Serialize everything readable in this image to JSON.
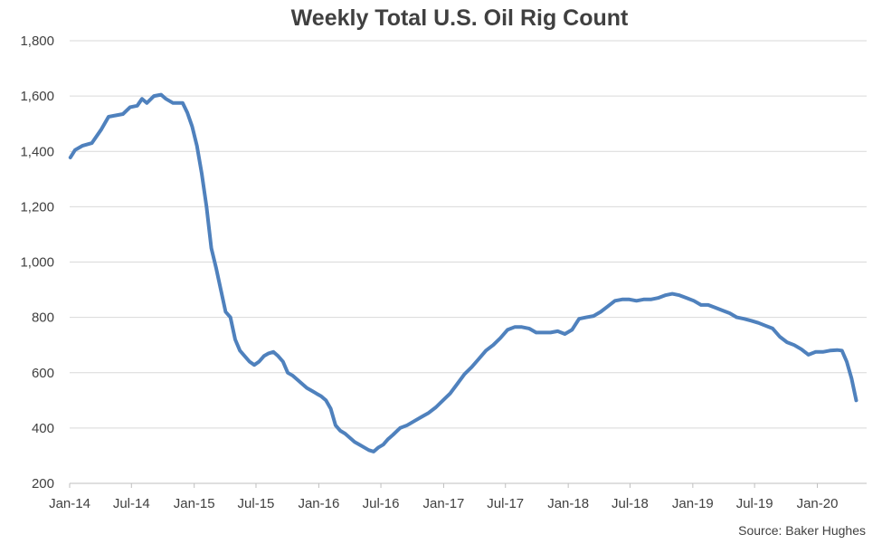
{
  "chart_data": {
    "type": "line",
    "title": "Weekly Total U.S. Oil Rig Count",
    "source": "Source: Baker Hughes",
    "x_tick_labels": [
      "Jan-14",
      "Jul-14",
      "Jan-15",
      "Jul-15",
      "Jan-16",
      "Jul-16",
      "Jan-17",
      "Jul-17",
      "Jan-18",
      "Jul-18",
      "Jan-19",
      "Jul-19",
      "Jan-20"
    ],
    "y_tick_labels": [
      "200",
      "400",
      "600",
      "800",
      "1,000",
      "1,200",
      "1,400",
      "1,600",
      "1,800"
    ],
    "ylim": [
      200,
      1800
    ],
    "xlim": [
      "2014-01-01",
      "2020-05-01"
    ],
    "grid": "horizontal",
    "colors": {
      "line": "#4f81bd",
      "grid": "#d9d9d9",
      "text": "#404040"
    },
    "series": [
      {
        "x": [
          "2014-01-03",
          "2014-01-17",
          "2014-02-07",
          "2014-03-07",
          "2014-04-04",
          "2014-04-25",
          "2014-05-16",
          "2014-06-06",
          "2014-06-27",
          "2014-07-18",
          "2014-08-01",
          "2014-08-15",
          "2014-09-05",
          "2014-09-26",
          "2014-10-10",
          "2014-10-31",
          "2014-11-28",
          "2014-12-12",
          "2014-12-26",
          "2015-01-09",
          "2015-01-23",
          "2015-02-06",
          "2015-02-20",
          "2015-03-06",
          "2015-03-20",
          "2015-04-03",
          "2015-04-17",
          "2015-05-01",
          "2015-05-15",
          "2015-05-29",
          "2015-06-12",
          "2015-06-26",
          "2015-07-10",
          "2015-07-24",
          "2015-08-07",
          "2015-08-21",
          "2015-09-04",
          "2015-09-18",
          "2015-10-02",
          "2015-10-16",
          "2015-10-30",
          "2015-11-13",
          "2015-11-27",
          "2015-12-11",
          "2015-12-25",
          "2016-01-08",
          "2016-01-22",
          "2016-02-05",
          "2016-02-19",
          "2016-03-04",
          "2016-03-18",
          "2016-04-01",
          "2016-04-15",
          "2016-04-29",
          "2016-05-13",
          "2016-05-27",
          "2016-06-10",
          "2016-06-24",
          "2016-07-08",
          "2016-07-22",
          "2016-08-05",
          "2016-08-26",
          "2016-09-16",
          "2016-10-07",
          "2016-10-28",
          "2016-11-18",
          "2016-12-09",
          "2016-12-30",
          "2017-01-20",
          "2017-02-10",
          "2017-03-03",
          "2017-03-24",
          "2017-04-14",
          "2017-05-05",
          "2017-05-26",
          "2017-06-16",
          "2017-07-07",
          "2017-07-28",
          "2017-08-18",
          "2017-09-08",
          "2017-09-29",
          "2017-10-20",
          "2017-11-10",
          "2017-12-01",
          "2017-12-22",
          "2018-01-12",
          "2018-02-02",
          "2018-02-23",
          "2018-03-16",
          "2018-04-06",
          "2018-04-27",
          "2018-05-18",
          "2018-06-08",
          "2018-06-29",
          "2018-07-20",
          "2018-08-10",
          "2018-08-31",
          "2018-09-21",
          "2018-10-12",
          "2018-11-02",
          "2018-11-23",
          "2018-12-14",
          "2019-01-04",
          "2019-01-25",
          "2019-02-15",
          "2019-03-08",
          "2019-03-29",
          "2019-04-19",
          "2019-05-10",
          "2019-05-31",
          "2019-06-21",
          "2019-07-12",
          "2019-08-02",
          "2019-08-23",
          "2019-09-13",
          "2019-10-04",
          "2019-10-25",
          "2019-11-15",
          "2019-12-06",
          "2019-12-27",
          "2020-01-17",
          "2020-02-07",
          "2020-02-28",
          "2020-03-13",
          "2020-03-27",
          "2020-04-10",
          "2020-04-24"
        ],
        "values": [
          1378,
          1405,
          1420,
          1430,
          1480,
          1525,
          1530,
          1535,
          1560,
          1565,
          1590,
          1575,
          1600,
          1605,
          1590,
          1575,
          1575,
          1540,
          1490,
          1420,
          1320,
          1200,
          1050,
          980,
          900,
          820,
          800,
          720,
          680,
          660,
          640,
          628,
          640,
          660,
          670,
          675,
          660,
          640,
          600,
          590,
          575,
          560,
          545,
          535,
          525,
          515,
          500,
          470,
          410,
          390,
          380,
          365,
          350,
          340,
          330,
          320,
          315,
          330,
          340,
          360,
          375,
          400,
          410,
          425,
          440,
          455,
          475,
          500,
          525,
          560,
          595,
          620,
          650,
          680,
          700,
          725,
          755,
          765,
          765,
          760,
          745,
          745,
          745,
          750,
          740,
          755,
          795,
          800,
          805,
          820,
          840,
          860,
          865,
          865,
          860,
          865,
          865,
          870,
          880,
          885,
          880,
          870,
          860,
          845,
          845,
          835,
          825,
          815,
          800,
          795,
          788,
          780,
          770,
          760,
          730,
          710,
          700,
          685,
          665,
          675,
          675,
          680,
          682,
          680,
          640,
          580,
          500
        ]
      }
    ]
  }
}
